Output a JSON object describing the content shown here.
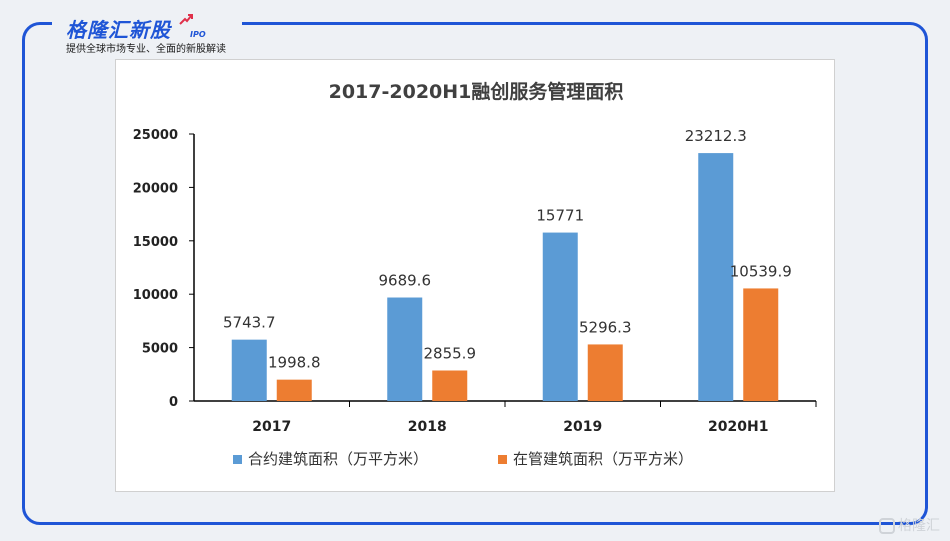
{
  "brand": {
    "name": "格隆汇新股",
    "suffix": "IPO",
    "tagline": "提供全球市场专业、全面的新股解读",
    "color": "#1f55d6"
  },
  "watermark": {
    "text": "格隆汇"
  },
  "chart_data": {
    "type": "bar",
    "title": "2017-2020H1融创服务管理面积",
    "categories": [
      "2017",
      "2018",
      "2019",
      "2020H1"
    ],
    "series": [
      {
        "name": "合约建筑面积（万平方米）",
        "color": "#5b9bd5",
        "values": [
          5743.7,
          9689.6,
          15771,
          23212.3
        ],
        "labels": [
          "5743.7",
          "9689.6",
          "15771",
          "23212.3"
        ]
      },
      {
        "name": "在管建筑面积（万平方米）",
        "color": "#ed7d31",
        "values": [
          1998.8,
          2855.9,
          5296.3,
          10539.9
        ],
        "labels": [
          "1998.8",
          "2855.9",
          "5296.3",
          "10539.9"
        ]
      }
    ],
    "ylim": [
      0,
      25000
    ],
    "yticks": [
      "0",
      "5000",
      "10000",
      "15000",
      "20000",
      "25000"
    ],
    "grid": false,
    "legend_position": "bottom"
  }
}
